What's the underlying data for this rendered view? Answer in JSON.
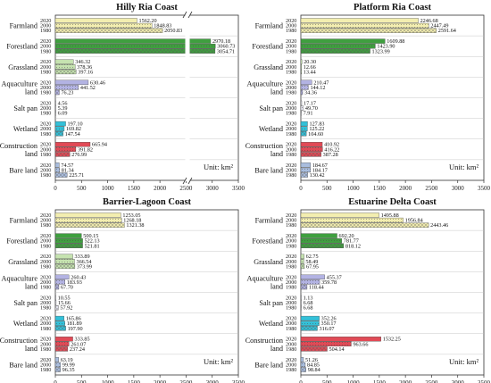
{
  "colors": {
    "farmland": "#f3eeb0",
    "forestland": "#3f9f3f",
    "grassland": "#c6e3b0",
    "aquaculture": "#b3b3e3",
    "saltpan": "#e9e9f3",
    "wetland": "#33c1d9",
    "construction": "#e14a56",
    "bareland": "#a9bdde"
  },
  "chart_data": [
    {
      "type": "bar",
      "orientation": "horizontal",
      "title": "Hilly Ria Coast",
      "unit": "Unit: km²",
      "categories": [
        "Farmland",
        "Forestland",
        "Grassland",
        "Aquaculture land",
        "Salt pan",
        "Wetland",
        "Construction land",
        "Bare land"
      ],
      "years": [
        "2020",
        "2000",
        "1980"
      ],
      "values": [
        [
          1562.2,
          1848.83,
          2050.83
        ],
        [
          2970.18,
          3060.73,
          3054.71
        ],
        [
          346.32,
          378.36,
          397.16
        ],
        [
          630.46,
          441.52,
          76.23
        ],
        [
          4.56,
          5.39,
          6.09
        ],
        [
          197.1,
          169.82,
          147.54
        ],
        [
          665.94,
          391.82,
          276.99
        ],
        [
          74.57,
          81.34,
          225.71
        ]
      ],
      "xlim": [
        0,
        3500
      ],
      "xticks": [
        "0",
        "500",
        "1000",
        "1500",
        "2000",
        "2500",
        "3000",
        "3500"
      ],
      "axis_break": true
    },
    {
      "type": "bar",
      "orientation": "horizontal",
      "title": "Platform Ria Coast",
      "unit": "Unit: km²",
      "categories": [
        "Farmland",
        "Forestland",
        "Grassland",
        "Aquaculture land",
        "Salt pan",
        "Wetland",
        "Construction land",
        "Bare land"
      ],
      "years": [
        "2020",
        "2000",
        "1980"
      ],
      "values": [
        [
          2246.68,
          2447.49,
          2591.64
        ],
        [
          1609.88,
          1423.9,
          1323.99
        ],
        [
          20.3,
          12.66,
          13.44
        ],
        [
          210.47,
          144.12,
          34.36
        ],
        [
          17.17,
          49.7,
          7.91
        ],
        [
          127.83,
          125.22,
          104.6
        ],
        [
          410.92,
          416.22,
          387.28
        ],
        [
          184.67,
          184.17,
          130.42
        ]
      ],
      "xlim": [
        0,
        3500
      ],
      "xticks": [
        "0",
        "500",
        "1000",
        "1500",
        "2000",
        "2500",
        "3000",
        "3500"
      ],
      "axis_break": false
    },
    {
      "type": "bar",
      "orientation": "horizontal",
      "title": "Barrier-Lagoon Coast",
      "unit": "Unit: km²",
      "categories": [
        "Farmland",
        "Forestland",
        "Grassland",
        "Aquaculture land",
        "Salt pan",
        "Wetland",
        "Construction land",
        "Bare land"
      ],
      "years": [
        "2020",
        "2000",
        "1980"
      ],
      "values": [
        [
          1253.05,
          1268.18,
          1321.38
        ],
        [
          500.15,
          522.13,
          521.81
        ],
        [
          333.89,
          366.54,
          373.99
        ],
        [
          260.43,
          183.93,
          67.7
        ],
        [
          10.55,
          15.66,
          57.92
        ],
        [
          165.86,
          181.89,
          197.9
        ],
        [
          333.85,
          261.07,
          237.24
        ],
        [
          63.19,
          99.99,
          96.35
        ]
      ],
      "xlim": [
        0,
        3500
      ],
      "xticks": [
        "0",
        "500",
        "1000",
        "1500",
        "2000",
        "2500",
        "3000",
        "3500"
      ],
      "axis_break": false
    },
    {
      "type": "bar",
      "orientation": "horizontal",
      "title": "Estuarine Delta Coast",
      "unit": "Unit: km²",
      "categories": [
        "Farmland",
        "Forestland",
        "Grassland",
        "Aquaculture land",
        "Salt pan",
        "Wetland",
        "Construction land",
        "Bare land"
      ],
      "years": [
        "2020",
        "2000",
        "1980"
      ],
      "values": [
        [
          1495.88,
          1956.84,
          2443.46
        ],
        [
          692.2,
          781.77,
          818.12
        ],
        [
          62.75,
          58.49,
          67.95
        ],
        [
          455.37,
          359.78,
          118.44
        ],
        [
          1.13,
          6.68,
          6.68
        ],
        [
          352.26,
          350.17,
          316.07
        ],
        [
          1532.25,
          963.66,
          504.14
        ],
        [
          51.26,
          84.85,
          98.84
        ]
      ],
      "xlim": [
        0,
        3500
      ],
      "xticks": [
        "0",
        "500",
        "1000",
        "1500",
        "2000",
        "2500",
        "3000",
        "3500"
      ],
      "axis_break": false
    }
  ]
}
